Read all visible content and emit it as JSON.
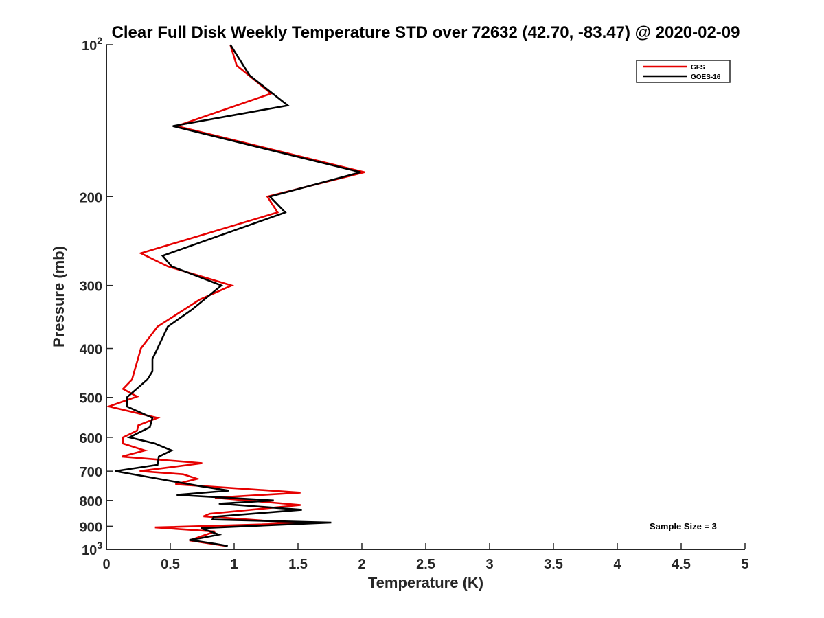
{
  "chart_data": {
    "type": "line",
    "title": "Clear Full Disk Weekly Temperature STD over 72632 (42.70, -83.47) @ 2020-02-09",
    "xlabel": "Temperature (K)",
    "ylabel": "Pressure (mb)",
    "xlim": [
      0,
      5
    ],
    "ylim": [
      100,
      1000
    ],
    "y_scale": "log",
    "y_reversed": true,
    "grid": false,
    "legend_position": "top-right",
    "x_ticks": [
      0,
      0.5,
      1,
      1.5,
      2,
      2.5,
      3,
      3.5,
      4,
      4.5,
      5
    ],
    "x_tick_labels": [
      "0",
      "0.5",
      "1",
      "1.5",
      "2",
      "2.5",
      "3",
      "3.5",
      "4",
      "4.5",
      "5"
    ],
    "y_ticks": [
      100,
      200,
      300,
      400,
      500,
      600,
      700,
      800,
      900,
      1000
    ],
    "y_tick_labels": [
      {
        "base": "10",
        "sup": "2"
      },
      {
        "base": "200",
        "sup": ""
      },
      {
        "base": "300",
        "sup": ""
      },
      {
        "base": "400",
        "sup": ""
      },
      {
        "base": "500",
        "sup": ""
      },
      {
        "base": "600",
        "sup": ""
      },
      {
        "base": "700",
        "sup": ""
      },
      {
        "base": "800",
        "sup": ""
      },
      {
        "base": "900",
        "sup": ""
      },
      {
        "base": "10",
        "sup": "3"
      }
    ],
    "annotation": "Sample Size = 3",
    "series": [
      {
        "name": "GFS",
        "color": "#e60000",
        "points": [
          [
            0.97,
            100
          ],
          [
            1.02,
            110
          ],
          [
            1.29,
            125
          ],
          [
            0.55,
            145
          ],
          [
            2.02,
            179
          ],
          [
            1.26,
            200
          ],
          [
            1.34,
            215
          ],
          [
            0.27,
            259
          ],
          [
            0.48,
            275
          ],
          [
            0.98,
            300
          ],
          [
            0.73,
            320
          ],
          [
            0.4,
            362
          ],
          [
            0.27,
            400
          ],
          [
            0.2,
            461
          ],
          [
            0.13,
            481
          ],
          [
            0.24,
            498
          ],
          [
            0.02,
            521
          ],
          [
            0.4,
            549
          ],
          [
            0.25,
            568
          ],
          [
            0.24,
            582
          ],
          [
            0.13,
            600
          ],
          [
            0.13,
            617
          ],
          [
            0.3,
            637
          ],
          [
            0.12,
            655
          ],
          [
            0.75,
            675
          ],
          [
            0.26,
            700
          ],
          [
            0.6,
            710
          ],
          [
            0.71,
            725
          ],
          [
            0.54,
            743
          ],
          [
            1.52,
            772
          ],
          [
            0.85,
            790
          ],
          [
            1.52,
            817
          ],
          [
            0.81,
            850
          ],
          [
            0.76,
            860
          ],
          [
            1.52,
            888
          ],
          [
            0.38,
            905
          ],
          [
            0.85,
            922
          ],
          [
            0.65,
            960
          ],
          [
            0.94,
            985
          ]
        ]
      },
      {
        "name": "GOES-16",
        "color": "#000000",
        "points": [
          [
            0.97,
            100
          ],
          [
            1.12,
            115
          ],
          [
            1.42,
            132
          ],
          [
            0.52,
            145
          ],
          [
            1.99,
            179
          ],
          [
            1.28,
            200
          ],
          [
            1.4,
            215
          ],
          [
            0.44,
            262
          ],
          [
            0.51,
            275
          ],
          [
            0.9,
            300
          ],
          [
            0.67,
            335
          ],
          [
            0.48,
            362
          ],
          [
            0.36,
            420
          ],
          [
            0.36,
            444
          ],
          [
            0.32,
            461
          ],
          [
            0.16,
            500
          ],
          [
            0.16,
            521
          ],
          [
            0.36,
            549
          ],
          [
            0.34,
            573
          ],
          [
            0.18,
            600
          ],
          [
            0.38,
            617
          ],
          [
            0.51,
            637
          ],
          [
            0.41,
            655
          ],
          [
            0.4,
            680
          ],
          [
            0.07,
            700
          ],
          [
            0.74,
            750
          ],
          [
            0.96,
            765
          ],
          [
            0.55,
            780
          ],
          [
            1.31,
            800
          ],
          [
            0.88,
            812
          ],
          [
            1.53,
            835
          ],
          [
            0.84,
            862
          ],
          [
            0.83,
            873
          ],
          [
            1.76,
            885
          ],
          [
            0.74,
            908
          ],
          [
            0.88,
            935
          ],
          [
            0.74,
            950
          ],
          [
            0.65,
            958
          ],
          [
            0.85,
            975
          ],
          [
            0.95,
            985
          ]
        ]
      }
    ]
  }
}
